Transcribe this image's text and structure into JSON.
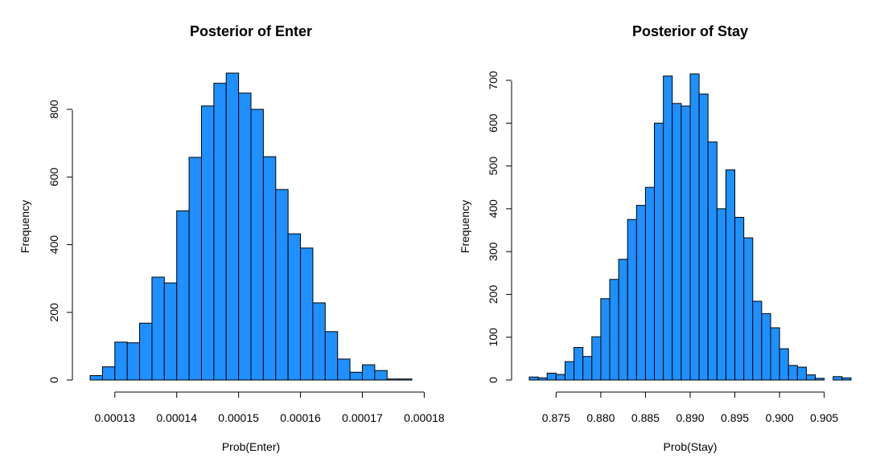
{
  "chart_data": [
    {
      "type": "bar",
      "title": "Posterior of Enter",
      "xlabel": "Prob(Enter)",
      "ylabel": "Frequency",
      "bar_color": "#1e90ff",
      "bin_edges": [
        0.000126,
        0.000128,
        0.00013,
        0.000132,
        0.000134,
        0.000136,
        0.000138,
        0.00014,
        0.000142,
        0.000144,
        0.000146,
        0.000148,
        0.00015,
        0.000152,
        0.000154,
        0.000156,
        0.000158,
        0.00016,
        0.000162,
        0.000164,
        0.000166,
        0.000168,
        0.00017,
        0.000172,
        0.000174,
        0.000176,
        0.000178
      ],
      "values": [
        13,
        39,
        112,
        110,
        168,
        304,
        287,
        500,
        658,
        810,
        877,
        907,
        848,
        800,
        660,
        563,
        432,
        390,
        228,
        143,
        62,
        23,
        45,
        28,
        3,
        3
      ],
      "xlim": [
        0.000126,
        0.000178
      ],
      "ylim": [
        0,
        907
      ],
      "x_ticks": [
        "0.00013",
        "0.00014",
        "0.00015",
        "0.00016",
        "0.00017",
        "0.00018"
      ],
      "y_ticks": [
        "0",
        "200",
        "400",
        "600",
        "800"
      ],
      "grid": false
    },
    {
      "type": "bar",
      "title": "Posterior of Stay",
      "xlabel": "Prob(Stay)",
      "ylabel": "Frequency",
      "bar_color": "#1e90ff",
      "bin_edges": [
        0.872,
        0.873,
        0.874,
        0.875,
        0.876,
        0.877,
        0.878,
        0.879,
        0.88,
        0.881,
        0.882,
        0.883,
        0.884,
        0.885,
        0.886,
        0.887,
        0.888,
        0.889,
        0.89,
        0.891,
        0.892,
        0.893,
        0.894,
        0.895,
        0.896,
        0.897,
        0.898,
        0.899,
        0.9,
        0.901,
        0.902,
        0.903,
        0.904,
        0.905,
        0.906,
        0.907,
        0.908
      ],
      "values": [
        7,
        5,
        16,
        13,
        43,
        76,
        55,
        101,
        190,
        235,
        282,
        375,
        408,
        450,
        600,
        710,
        646,
        640,
        715,
        668,
        556,
        400,
        491,
        380,
        332,
        184,
        155,
        122,
        73,
        34,
        30,
        12,
        4,
        0,
        8,
        5
      ],
      "xlim": [
        0.872,
        0.908
      ],
      "ylim": [
        0,
        715
      ],
      "x_ticks": [
        "0.875",
        "0.880",
        "0.885",
        "0.890",
        "0.895",
        "0.900",
        "0.905"
      ],
      "y_ticks": [
        "0",
        "100",
        "200",
        "300",
        "400",
        "500",
        "600",
        "700"
      ],
      "grid": false
    }
  ]
}
